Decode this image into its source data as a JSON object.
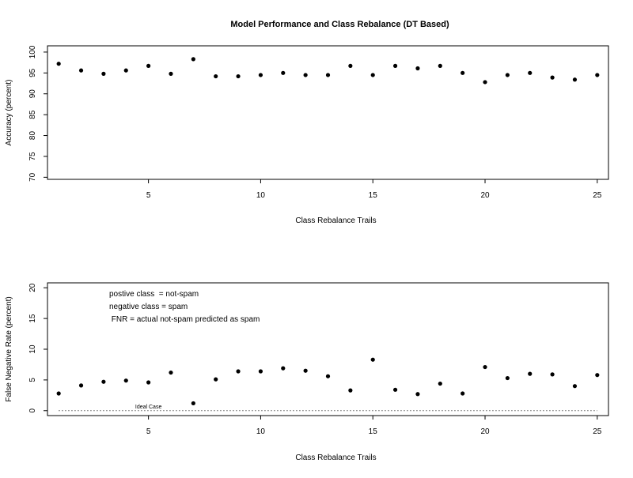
{
  "chart_data": [
    {
      "type": "scatter",
      "title": "Model Performance and Class Rebalance (DT Based)",
      "xlabel": "Class Rebalance Trails",
      "ylabel": "Accuracy (percent)",
      "xlim": [
        0.5,
        25.5
      ],
      "ylim": [
        69.5,
        101.5
      ],
      "xticks": [
        5,
        10,
        15,
        20,
        25
      ],
      "yticks": [
        70,
        75,
        80,
        85,
        90,
        95,
        100
      ],
      "grid": false,
      "x": [
        1,
        2,
        3,
        4,
        5,
        6,
        7,
        8,
        9,
        10,
        11,
        12,
        13,
        14,
        15,
        16,
        17,
        18,
        19,
        20,
        21,
        22,
        23,
        24,
        25
      ],
      "values": [
        97.2,
        95.6,
        94.8,
        95.6,
        96.7,
        94.8,
        98.3,
        94.2,
        94.2,
        94.5,
        95.0,
        94.5,
        94.5,
        96.7,
        94.5,
        96.7,
        96.1,
        96.7,
        95.0,
        92.8,
        94.5,
        95.0,
        93.9,
        93.4,
        94.5
      ],
      "color": "#000000"
    },
    {
      "type": "scatter",
      "title": "",
      "xlabel": "Class Rebalance Trails",
      "ylabel": "False Negative Rate (percent)",
      "xlim": [
        0.5,
        25.5
      ],
      "ylim": [
        -0.8,
        20.8
      ],
      "xticks": [
        5,
        10,
        15,
        20,
        25
      ],
      "yticks": [
        0,
        5,
        10,
        15,
        20
      ],
      "grid": false,
      "x": [
        1,
        2,
        3,
        4,
        5,
        6,
        7,
        8,
        9,
        10,
        11,
        12,
        13,
        14,
        15,
        16,
        17,
        18,
        19,
        20,
        21,
        22,
        23,
        24,
        25
      ],
      "values": [
        2.8,
        4.1,
        4.7,
        4.9,
        4.6,
        6.2,
        1.2,
        5.1,
        6.4,
        6.4,
        6.9,
        6.5,
        5.6,
        3.3,
        8.3,
        3.4,
        2.7,
        4.4,
        2.8,
        7.1,
        5.3,
        6.0,
        5.9,
        4.0,
        5.8
      ],
      "color": "#000000",
      "reference_line": {
        "y": 0,
        "from_x": 1,
        "to_x": 25,
        "style": "dotted",
        "label": "Ideal Case",
        "label_x": 5
      },
      "annotations": [
        "postive class  = not-spam",
        "negative class = spam",
        " FNR = actual not-spam predicted as spam"
      ]
    }
  ]
}
